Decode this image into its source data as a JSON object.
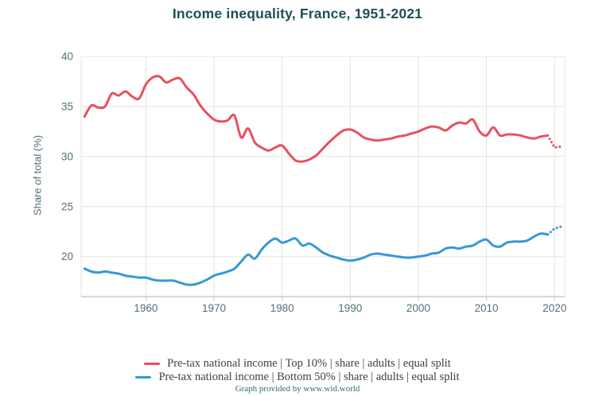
{
  "chart_data": {
    "type": "line",
    "title": "Income inequality, France, 1951-2021",
    "ylabel": "Share of total (%)",
    "xlabel": "",
    "ylim": [
      16,
      40
    ],
    "yticks": [
      40,
      35,
      30,
      25,
      20
    ],
    "xticks": [
      1960,
      1970,
      1980,
      1990,
      2000,
      2010,
      2020
    ],
    "x_range": [
      1951,
      2021
    ],
    "dotted_from_year": 2019,
    "grid": true,
    "legend_position": "bottom",
    "series": [
      {
        "name": "Pre-tax national income | Top 10% | share | adults | equal split",
        "key": "top10",
        "values": [
          34.0,
          35.1,
          34.9,
          35.0,
          36.3,
          36.1,
          36.5,
          36.0,
          35.8,
          37.2,
          37.9,
          38.0,
          37.4,
          37.7,
          37.8,
          36.9,
          36.2,
          35.1,
          34.3,
          33.7,
          33.5,
          33.6,
          34.1,
          31.9,
          32.8,
          31.4,
          30.9,
          30.6,
          30.9,
          31.1,
          30.3,
          29.6,
          29.5,
          29.7,
          30.1,
          30.8,
          31.5,
          32.1,
          32.6,
          32.7,
          32.4,
          31.9,
          31.7,
          31.6,
          31.7,
          31.8,
          32.0,
          32.1,
          32.3,
          32.5,
          32.8,
          33.0,
          32.9,
          32.6,
          33.1,
          33.4,
          33.3,
          33.7,
          32.5,
          32.1,
          32.9,
          32.1,
          32.2,
          32.2,
          32.1,
          31.9,
          31.8,
          32.0,
          32.1,
          30.9,
          31.0
        ]
      },
      {
        "name": "Pre-tax national income | Bottom 50% | share | adults | equal split",
        "key": "bottom50",
        "values": [
          18.8,
          18.5,
          18.4,
          18.5,
          18.4,
          18.3,
          18.1,
          18.0,
          17.9,
          17.9,
          17.7,
          17.6,
          17.6,
          17.6,
          17.4,
          17.2,
          17.2,
          17.4,
          17.7,
          18.1,
          18.3,
          18.5,
          18.8,
          19.5,
          20.2,
          19.8,
          20.7,
          21.4,
          21.8,
          21.4,
          21.6,
          21.8,
          21.1,
          21.3,
          20.9,
          20.4,
          20.1,
          19.9,
          19.7,
          19.6,
          19.7,
          19.9,
          20.2,
          20.3,
          20.2,
          20.1,
          20.0,
          19.9,
          19.9,
          20.0,
          20.1,
          20.3,
          20.4,
          20.8,
          20.9,
          20.8,
          21.0,
          21.1,
          21.5,
          21.7,
          21.1,
          21.0,
          21.4,
          21.5,
          21.5,
          21.6,
          22.0,
          22.3,
          22.2,
          22.8,
          23.0
        ]
      }
    ],
    "credit": "Graph provided by www.wid.world"
  },
  "colors": {
    "top10": "#e8505e",
    "bottom50": "#3898d4",
    "title": "#1f4e56",
    "axis_text": "#527078",
    "grid": "#e4e4df",
    "axis_line": "#bcd3db",
    "tick_mark": "#c9c9c4",
    "legend_text": "#3f3f3f",
    "credit_text": "#2d6b75",
    "background": "#ffffff"
  }
}
